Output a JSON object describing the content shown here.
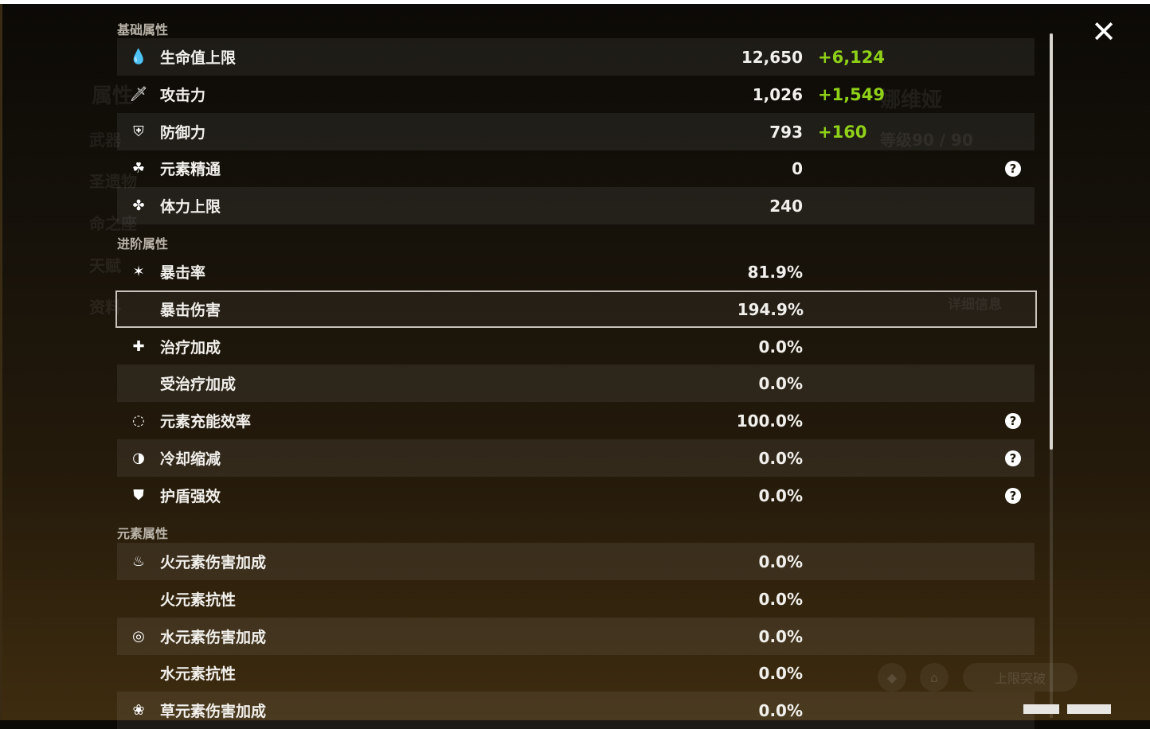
{
  "sections": {
    "basic": {
      "title": "基础属性",
      "rows": [
        {
          "icon": "hp-drop-icon",
          "label": "生命值上限",
          "value": "12,650",
          "bonus": "+6,124"
        },
        {
          "icon": "sword-icon",
          "label": "攻击力",
          "value": "1,026",
          "bonus": "+1,549"
        },
        {
          "icon": "shield-icon",
          "label": "防御力",
          "value": "793",
          "bonus": "+160"
        },
        {
          "icon": "elemental-mastery-icon",
          "label": "元素精通",
          "value": "0",
          "help": "?"
        },
        {
          "icon": "stamina-icon",
          "label": "体力上限",
          "value": "240"
        }
      ]
    },
    "advanced": {
      "title": "进阶属性",
      "rows": [
        {
          "icon": "crit-rate-icon",
          "label": "暴击率",
          "value": "81.9%"
        },
        {
          "label": "暴击伤害",
          "value": "194.9%",
          "selected": true
        },
        {
          "icon": "healing-cross-icon",
          "label": "治疗加成",
          "value": "0.0%"
        },
        {
          "label": "受治疗加成",
          "value": "0.0%"
        },
        {
          "icon": "energy-recharge-icon",
          "label": "元素充能效率",
          "value": "100.0%",
          "help": "?"
        },
        {
          "icon": "cooldown-icon",
          "label": "冷却缩减",
          "value": "0.0%",
          "help": "?"
        },
        {
          "icon": "shield-strength-icon",
          "label": "护盾强效",
          "value": "0.0%",
          "help": "?"
        }
      ]
    },
    "elemental": {
      "title": "元素属性",
      "rows": [
        {
          "icon": "pyro-icon",
          "label": "火元素伤害加成",
          "value": "0.0%"
        },
        {
          "label": "火元素抗性",
          "value": "0.0%"
        },
        {
          "icon": "hydro-icon",
          "label": "水元素伤害加成",
          "value": "0.0%"
        },
        {
          "label": "水元素抗性",
          "value": "0.0%"
        },
        {
          "icon": "dendro-icon",
          "label": "草元素伤害加成",
          "value": "0.0%"
        }
      ]
    }
  },
  "background": {
    "character_name": "娜维娅",
    "level": "等级90 / 90",
    "details_button": "详细信息",
    "ascend_button": "上限突破",
    "tab_attributes": "属性",
    "tab_weapon": "武器",
    "tab_artifacts": "圣遗物",
    "tab_constellation": "命之座",
    "tab_talents": "天赋",
    "tab_profile": "资料"
  },
  "close_icon": "close-icon",
  "colors": {
    "bonus": "#8fd118",
    "text": "#f2f0ec"
  }
}
